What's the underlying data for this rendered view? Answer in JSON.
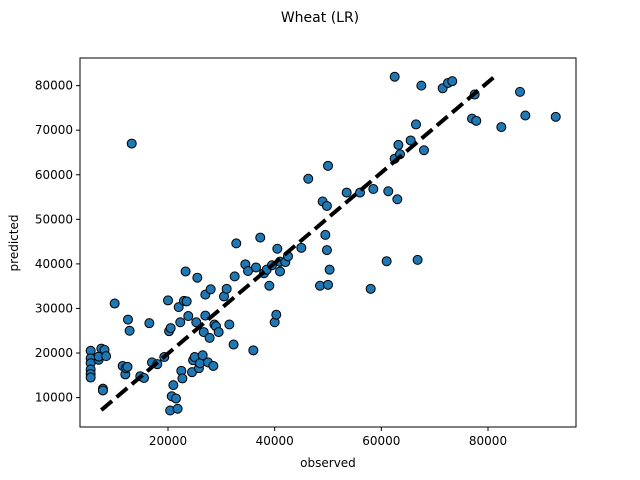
{
  "chart_data": {
    "type": "scatter",
    "title": "Wheat (LR)",
    "xlabel": "observed",
    "ylabel": "predicted",
    "xlim": [
      3500,
      96500
    ],
    "ylim": [
      3400,
      86200
    ],
    "xticks": [
      20000,
      40000,
      60000,
      80000
    ],
    "yticks": [
      10000,
      20000,
      30000,
      40000,
      50000,
      60000,
      70000,
      80000
    ],
    "grid": false,
    "point_color": "#1f77b4",
    "point_edge_color": "#000000",
    "reference_line": {
      "style": "dashed",
      "color": "#000000",
      "x": [
        7500,
        81500
      ],
      "y": [
        7200,
        82300
      ]
    },
    "series": [
      {
        "values": [
          [
            5500,
            20500
          ],
          [
            5500,
            18800
          ],
          [
            5500,
            17700
          ],
          [
            5500,
            16300
          ],
          [
            5500,
            15300
          ],
          [
            5500,
            14500
          ],
          [
            7000,
            18500
          ],
          [
            7000,
            19200
          ],
          [
            7500,
            21000
          ],
          [
            7800,
            12000
          ],
          [
            7800,
            11600
          ],
          [
            8100,
            20700
          ],
          [
            8400,
            19300
          ],
          [
            10000,
            31100
          ],
          [
            11500,
            17100
          ],
          [
            12000,
            15200
          ],
          [
            12100,
            16600
          ],
          [
            12400,
            16900
          ],
          [
            12500,
            27500
          ],
          [
            12800,
            25000
          ],
          [
            13200,
            67000
          ],
          [
            14800,
            14800
          ],
          [
            15500,
            14400
          ],
          [
            16500,
            26700
          ],
          [
            17000,
            17900
          ],
          [
            18000,
            17500
          ],
          [
            19300,
            19100
          ],
          [
            20000,
            31800
          ],
          [
            20200,
            24900
          ],
          [
            20400,
            7100
          ],
          [
            20500,
            25600
          ],
          [
            20700,
            10300
          ],
          [
            21000,
            12800
          ],
          [
            21500,
            9800
          ],
          [
            21800,
            7500
          ],
          [
            22000,
            30300
          ],
          [
            22300,
            26900
          ],
          [
            22500,
            16000
          ],
          [
            22700,
            14300
          ],
          [
            23000,
            31700
          ],
          [
            23300,
            38300
          ],
          [
            23500,
            31600
          ],
          [
            23800,
            28300
          ],
          [
            24500,
            15700
          ],
          [
            24700,
            18400
          ],
          [
            25000,
            19100
          ],
          [
            25300,
            26900
          ],
          [
            25500,
            36900
          ],
          [
            25800,
            16600
          ],
          [
            26000,
            17700
          ],
          [
            26500,
            19500
          ],
          [
            26700,
            24700
          ],
          [
            27000,
            28400
          ],
          [
            27000,
            33100
          ],
          [
            27500,
            17900
          ],
          [
            27800,
            23400
          ],
          [
            28000,
            34300
          ],
          [
            28500,
            17100
          ],
          [
            28700,
            26400
          ],
          [
            29000,
            26000
          ],
          [
            29500,
            24700
          ],
          [
            30500,
            32700
          ],
          [
            31000,
            34400
          ],
          [
            31500,
            26400
          ],
          [
            32300,
            21900
          ],
          [
            32500,
            37200
          ],
          [
            32800,
            44600
          ],
          [
            34500,
            39900
          ],
          [
            35000,
            38400
          ],
          [
            36000,
            20600
          ],
          [
            36500,
            39200
          ],
          [
            37300,
            45900
          ],
          [
            38000,
            37900
          ],
          [
            38500,
            38700
          ],
          [
            39000,
            35100
          ],
          [
            39500,
            39700
          ],
          [
            40000,
            26900
          ],
          [
            40300,
            28600
          ],
          [
            40500,
            43400
          ],
          [
            41000,
            38300
          ],
          [
            41000,
            40500
          ],
          [
            42000,
            40400
          ],
          [
            42500,
            41700
          ],
          [
            45000,
            43600
          ],
          [
            46300,
            59100
          ],
          [
            48500,
            35100
          ],
          [
            49000,
            54000
          ],
          [
            49500,
            46500
          ],
          [
            49800,
            43100
          ],
          [
            49800,
            53000
          ],
          [
            50000,
            35300
          ],
          [
            50000,
            62000
          ],
          [
            50300,
            38700
          ],
          [
            53500,
            56000
          ],
          [
            56000,
            56000
          ],
          [
            58000,
            34400
          ],
          [
            58500,
            56800
          ],
          [
            61000,
            40600
          ],
          [
            61300,
            56300
          ],
          [
            62500,
            82000
          ],
          [
            62500,
            63600
          ],
          [
            63000,
            54500
          ],
          [
            63200,
            66700
          ],
          [
            63500,
            64600
          ],
          [
            65500,
            67700
          ],
          [
            66500,
            71300
          ],
          [
            66800,
            40900
          ],
          [
            67500,
            80000
          ],
          [
            68000,
            65500
          ],
          [
            71500,
            79400
          ],
          [
            72500,
            80600
          ],
          [
            73300,
            81000
          ],
          [
            77000,
            72600
          ],
          [
            77500,
            78000
          ],
          [
            77800,
            72100
          ],
          [
            82500,
            70700
          ],
          [
            86000,
            78600
          ],
          [
            87000,
            73300
          ],
          [
            92700,
            73000
          ]
        ]
      }
    ]
  }
}
